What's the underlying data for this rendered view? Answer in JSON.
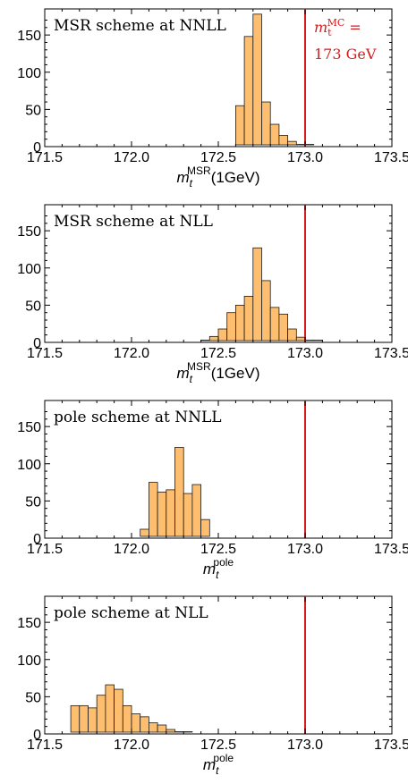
{
  "colors": {
    "bar_fill": "#fdbf6f",
    "bar_stroke": "#1a1a1a",
    "mc_line": "#d7191c",
    "axis": "#000000"
  },
  "chart_data": [
    {
      "type": "bar",
      "title": "MSR scheme at NNLL",
      "xlabel": {
        "symbol": "m",
        "sub": "t",
        "sup": "MSR",
        "suffix": "(1GeV)"
      },
      "ylabel": "",
      "xlim": [
        171.5,
        173.5
      ],
      "ylim": [
        0,
        185
      ],
      "xticks": [
        "171.5",
        "172.0",
        "172.5",
        "173.0",
        "173.5"
      ],
      "yticks": [
        "0",
        "50",
        "100",
        "150"
      ],
      "bin_width": 0.05,
      "bins": [
        {
          "x": 172.6,
          "y": 55
        },
        {
          "x": 172.65,
          "y": 148
        },
        {
          "x": 172.7,
          "y": 178
        },
        {
          "x": 172.75,
          "y": 60
        },
        {
          "x": 172.8,
          "y": 30
        },
        {
          "x": 172.85,
          "y": 15
        },
        {
          "x": 172.9,
          "y": 7
        },
        {
          "x": 172.95,
          "y": 3
        },
        {
          "x": 173.0,
          "y": 1
        }
      ],
      "mc_line": 173.0,
      "annotation": {
        "line1": {
          "symbol": "m",
          "sub": "t",
          "sup": "MC",
          "suffix": " ="
        },
        "line2": "173 GeV"
      }
    },
    {
      "type": "bar",
      "title": "MSR scheme at NLL",
      "xlabel": {
        "symbol": "m",
        "sub": "t",
        "sup": "MSR",
        "suffix": "(1GeV)"
      },
      "ylabel": "",
      "xlim": [
        171.5,
        173.5
      ],
      "ylim": [
        0,
        185
      ],
      "xticks": [
        "171.5",
        "172.0",
        "172.5",
        "173.0",
        "173.5"
      ],
      "yticks": [
        "0",
        "50",
        "100",
        "150"
      ],
      "bin_width": 0.05,
      "bins": [
        {
          "x": 172.4,
          "y": 2
        },
        {
          "x": 172.45,
          "y": 8
        },
        {
          "x": 172.5,
          "y": 18
        },
        {
          "x": 172.55,
          "y": 40
        },
        {
          "x": 172.6,
          "y": 50
        },
        {
          "x": 172.65,
          "y": 62
        },
        {
          "x": 172.7,
          "y": 127
        },
        {
          "x": 172.75,
          "y": 83
        },
        {
          "x": 172.8,
          "y": 47
        },
        {
          "x": 172.85,
          "y": 38
        },
        {
          "x": 172.9,
          "y": 18
        },
        {
          "x": 172.95,
          "y": 7
        },
        {
          "x": 173.0,
          "y": 3
        },
        {
          "x": 173.05,
          "y": 1
        }
      ],
      "mc_line": 173.0
    },
    {
      "type": "bar",
      "title": "pole scheme at NNLL",
      "xlabel": {
        "symbol": "m",
        "sub": "t",
        "sup": "pole",
        "suffix": ""
      },
      "ylabel": "",
      "xlim": [
        171.5,
        173.5
      ],
      "ylim": [
        0,
        185
      ],
      "xticks": [
        "171.5",
        "172.0",
        "172.5",
        "173.0",
        "173.5"
      ],
      "yticks": [
        "0",
        "50",
        "100",
        "150"
      ],
      "bin_width": 0.05,
      "bins": [
        {
          "x": 172.05,
          "y": 12
        },
        {
          "x": 172.1,
          "y": 75
        },
        {
          "x": 172.15,
          "y": 62
        },
        {
          "x": 172.2,
          "y": 65
        },
        {
          "x": 172.25,
          "y": 122
        },
        {
          "x": 172.3,
          "y": 60
        },
        {
          "x": 172.35,
          "y": 72
        },
        {
          "x": 172.4,
          "y": 25
        }
      ],
      "mc_line": 173.0
    },
    {
      "type": "bar",
      "title": "pole scheme at NLL",
      "xlabel": {
        "symbol": "m",
        "sub": "t",
        "sup": "pole",
        "suffix": ""
      },
      "ylabel": "",
      "xlim": [
        171.5,
        173.5
      ],
      "ylim": [
        0,
        185
      ],
      "xticks": [
        "171.5",
        "172.0",
        "172.5",
        "173.0",
        "173.5"
      ],
      "yticks": [
        "0",
        "50",
        "100",
        "150"
      ],
      "bin_width": 0.05,
      "bins": [
        {
          "x": 171.65,
          "y": 38
        },
        {
          "x": 171.7,
          "y": 38
        },
        {
          "x": 171.75,
          "y": 35
        },
        {
          "x": 171.8,
          "y": 52
        },
        {
          "x": 171.85,
          "y": 66
        },
        {
          "x": 171.9,
          "y": 60
        },
        {
          "x": 171.95,
          "y": 38
        },
        {
          "x": 172.0,
          "y": 27
        },
        {
          "x": 172.05,
          "y": 23
        },
        {
          "x": 172.1,
          "y": 15
        },
        {
          "x": 172.15,
          "y": 12
        },
        {
          "x": 172.2,
          "y": 6
        },
        {
          "x": 172.25,
          "y": 3
        },
        {
          "x": 172.3,
          "y": 1
        }
      ],
      "mc_line": 173.0
    }
  ]
}
